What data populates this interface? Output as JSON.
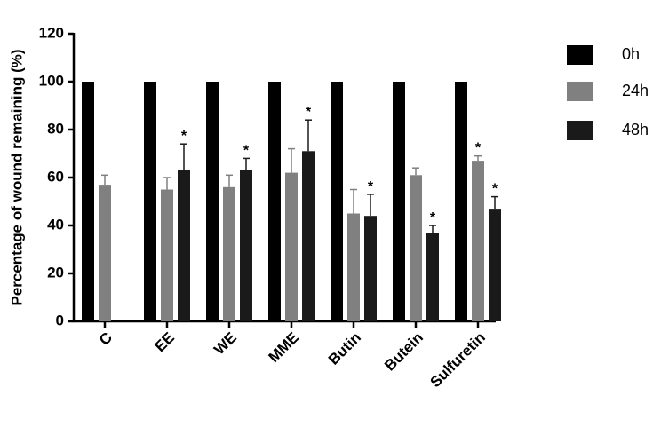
{
  "chart_data": {
    "type": "bar",
    "y_label": "Percentage of wound remaining (%)",
    "categories": [
      "C",
      "EE",
      "WE",
      "MME",
      "Butin",
      "Butein",
      "Sulfuretin"
    ],
    "series": [
      {
        "name": "0h",
        "color": "#000000",
        "values": [
          100,
          100,
          100,
          100,
          100,
          100,
          100
        ],
        "errors": [
          null,
          null,
          null,
          null,
          null,
          null,
          null
        ],
        "significance": [
          null,
          null,
          null,
          null,
          null,
          null,
          null
        ]
      },
      {
        "name": "24h",
        "color": "#808080",
        "values": [
          57,
          55,
          56,
          62,
          45,
          61,
          67
        ],
        "errors": [
          4,
          5,
          5,
          10,
          10,
          3,
          2
        ],
        "significance": [
          null,
          null,
          null,
          null,
          null,
          null,
          "*"
        ]
      },
      {
        "name": "48h",
        "color": "#1a1a1a",
        "values": [
          null,
          63,
          63,
          71,
          44,
          37,
          47
        ],
        "errors": [
          null,
          11,
          5,
          13,
          9,
          3,
          5
        ],
        "significance": [
          null,
          "*",
          "*",
          "*",
          "*",
          "*",
          "*"
        ]
      }
    ],
    "ylim": [
      0,
      120
    ],
    "yticks": [
      0,
      20,
      40,
      60,
      80,
      100,
      120
    ],
    "legend": "right"
  }
}
